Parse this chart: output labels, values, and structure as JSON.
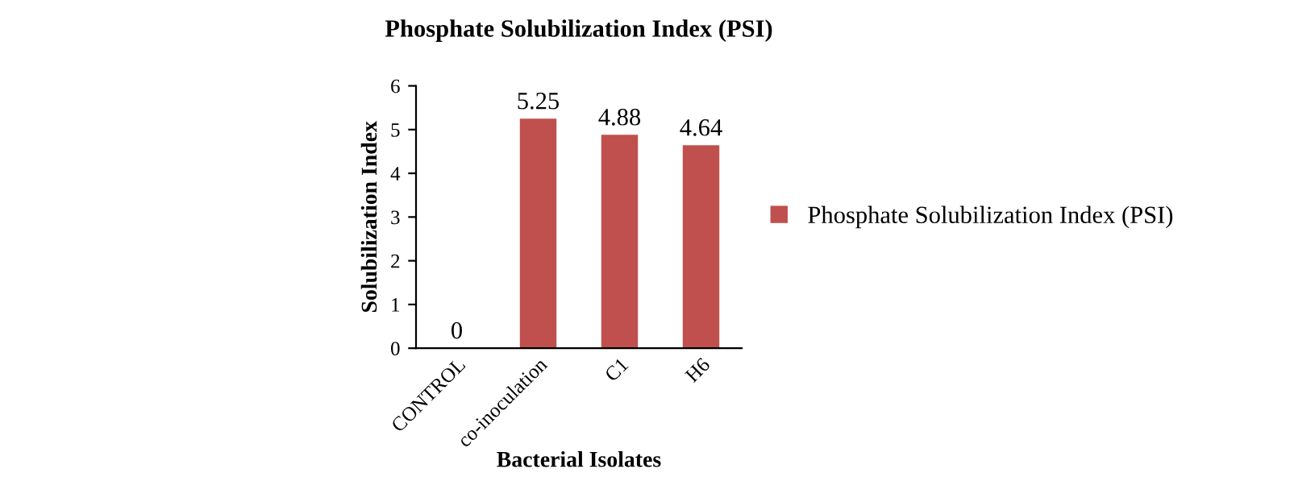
{
  "chart_data": {
    "type": "bar",
    "title": "Phosphate Solubilization Index (PSI)",
    "xlabel": "Bacterial Isolates",
    "ylabel": "Solubilization Index",
    "categories": [
      "CONTROL",
      "co-inoculation",
      "C1",
      "H6"
    ],
    "series": [
      {
        "name": "Phosphate Solubilization Index (PSI)",
        "color": "#c0504d",
        "values": [
          0,
          5.25,
          4.88,
          4.64
        ]
      }
    ],
    "ylim": [
      0,
      6
    ],
    "yticks": [
      0,
      1,
      2,
      3,
      4,
      5,
      6
    ],
    "grid": false,
    "legend": "right",
    "data_labels": true
  }
}
